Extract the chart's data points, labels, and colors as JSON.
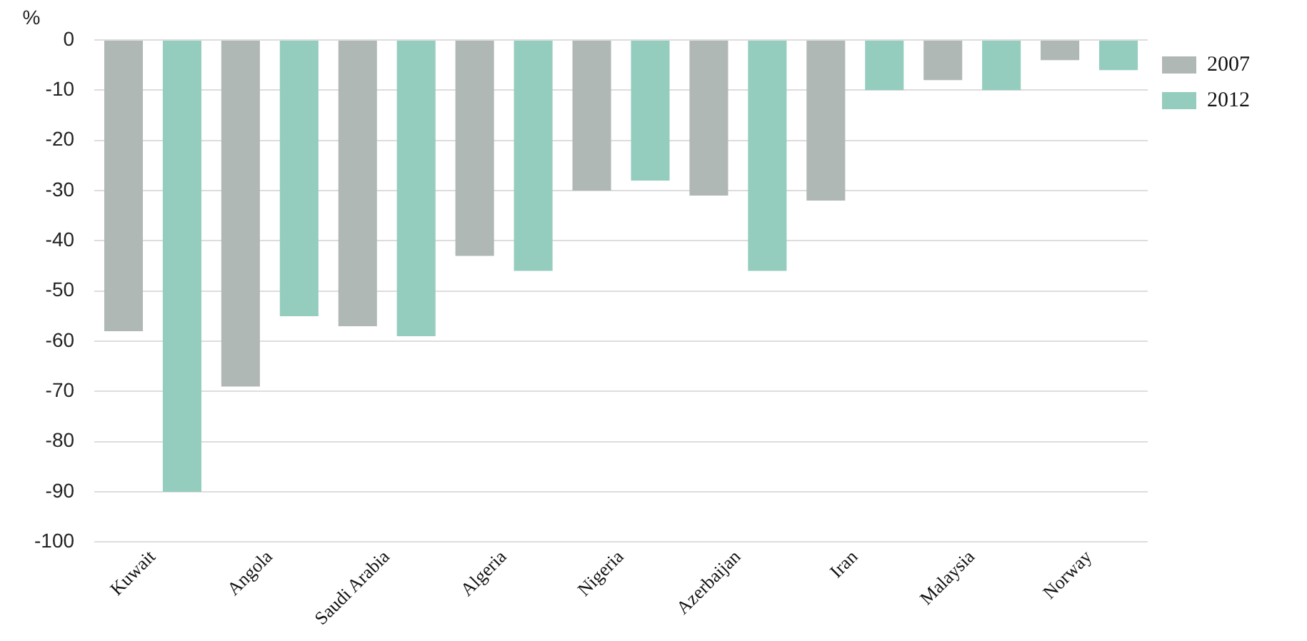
{
  "chart_data": {
    "type": "bar",
    "ylabel": "%",
    "categories": [
      "Kuwait",
      "Angola",
      "Saudi Arabia",
      "Algeria",
      "Nigeria",
      "Azerbaijan",
      "Iran",
      "Malaysia",
      "Norway"
    ],
    "series": [
      {
        "name": "2007",
        "color": "#b0b8b6",
        "values": [
          -58,
          -69,
          -57,
          -43,
          -30,
          -31,
          -32,
          -8,
          -4
        ]
      },
      {
        "name": "2012",
        "color": "#94cdbe",
        "values": [
          -90,
          -55,
          -59,
          -46,
          -28,
          -46,
          -10,
          -10,
          -6
        ]
      }
    ],
    "ylim": [
      -100,
      0
    ],
    "yticks": [
      0,
      -10,
      -20,
      -30,
      -40,
      -50,
      -60,
      -70,
      -80,
      -90,
      -100
    ],
    "grid": "y",
    "legend": "top right"
  }
}
